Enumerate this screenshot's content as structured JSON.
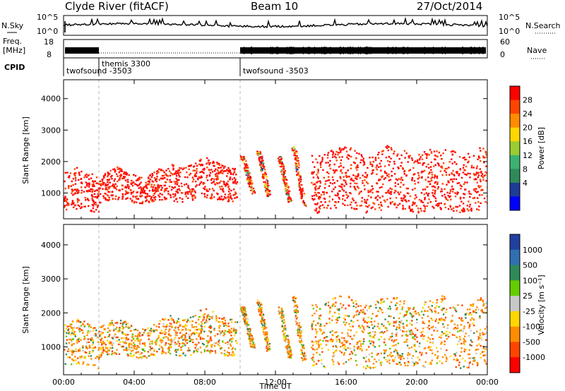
{
  "header": {
    "station": "Clyde River (fitACF)",
    "beam": "Beam 10",
    "date": "27/Oct/2014"
  },
  "summary_panel": {
    "left_label_top": "N.Sky",
    "left_ticks": [
      "10^5",
      "10^0"
    ],
    "right_ticks": [
      "10^5",
      "10^0"
    ],
    "right_label": "N.Search",
    "freq_label_1": "Freq.",
    "freq_label_2": "[MHz]",
    "freq_ticks": [
      "18",
      "8"
    ],
    "nave_ticks": [
      "60",
      "0"
    ],
    "nave_label": "Nave",
    "cpid_label": "CPID"
  },
  "cpid_segments": [
    {
      "name": "twofsound -3503",
      "start_hour": 0
    },
    {
      "name": "themis 3300",
      "start_hour": 2
    },
    {
      "name": "twofsound -3503",
      "start_hour": 10
    }
  ],
  "chart_data": [
    {
      "type": "heatmap",
      "panel": "power",
      "ylabel": "Slant Range [km]",
      "y_ticks": [
        1000,
        2000,
        3000,
        4000
      ],
      "ylim": [
        180,
        4600
      ],
      "x_ticks": [
        "00:00",
        "04:00",
        "08:00",
        "12:00",
        "16:00",
        "20:00",
        "00:00"
      ],
      "xlim_hours": [
        0,
        24
      ],
      "colorbar": {
        "label": "Power [dB]",
        "ticks": [
          "28",
          "24",
          "20",
          "16",
          "12",
          "8",
          "4"
        ],
        "colors": [
          "#ff0000",
          "#ff4500",
          "#ff8c00",
          "#ffd700",
          "#9acd32",
          "#3cb371",
          "#2e8b57",
          "#1e3c96",
          "#0000ff"
        ]
      },
      "bands": [
        {
          "start": 0.0,
          "end": 2.0,
          "lo": 450,
          "hi": 1700
        },
        {
          "start": 2.0,
          "end": 6.0,
          "lo": 750,
          "hi": 1700
        },
        {
          "start": 6.0,
          "end": 9.8,
          "lo": 800,
          "hi": 2000
        },
        {
          "start": 14.0,
          "end": 24.0,
          "lo": 450,
          "hi": 2400
        }
      ],
      "streaks": [
        {
          "t": 10.1,
          "lo": 1000,
          "hi": 2200
        },
        {
          "t": 11.0,
          "lo": 900,
          "hi": 2400
        },
        {
          "t": 12.2,
          "lo": 700,
          "hi": 2200
        },
        {
          "t": 13.0,
          "lo": 600,
          "hi": 2500
        }
      ]
    },
    {
      "type": "heatmap",
      "panel": "velocity",
      "ylabel": "Slant Range [km]",
      "y_ticks": [
        1000,
        2000,
        3000,
        4000
      ],
      "ylim": [
        180,
        4600
      ],
      "x_ticks": [
        "00:00",
        "04:00",
        "08:00",
        "12:00",
        "16:00",
        "20:00",
        "00:00"
      ],
      "xlim_hours": [
        0,
        24
      ],
      "xlabel": "Time UT",
      "colorbar": {
        "label": "Velocity [m s⁻¹]",
        "ticks": [
          "1000",
          "500",
          "100",
          "25",
          "-25",
          "-100",
          "-500",
          "-1000"
        ],
        "colors": [
          "#2040a0",
          "#3070b0",
          "#2e8b57",
          "#66cd00",
          "#c8c8c8",
          "#ffd700",
          "#ff8c00",
          "#ff4500",
          "#ff0000"
        ]
      },
      "bands": [
        {
          "start": 0.0,
          "end": 2.0,
          "lo": 450,
          "hi": 1700
        },
        {
          "start": 2.0,
          "end": 6.0,
          "lo": 750,
          "hi": 1700
        },
        {
          "start": 6.0,
          "end": 9.8,
          "lo": 800,
          "hi": 2000
        },
        {
          "start": 14.0,
          "end": 24.0,
          "lo": 450,
          "hi": 2400
        }
      ],
      "streaks": [
        {
          "t": 10.1,
          "lo": 1000,
          "hi": 2200
        },
        {
          "t": 11.0,
          "lo": 900,
          "hi": 2400
        },
        {
          "t": 12.2,
          "lo": 700,
          "hi": 2200
        },
        {
          "t": 13.0,
          "lo": 600,
          "hi": 2500
        }
      ]
    }
  ]
}
